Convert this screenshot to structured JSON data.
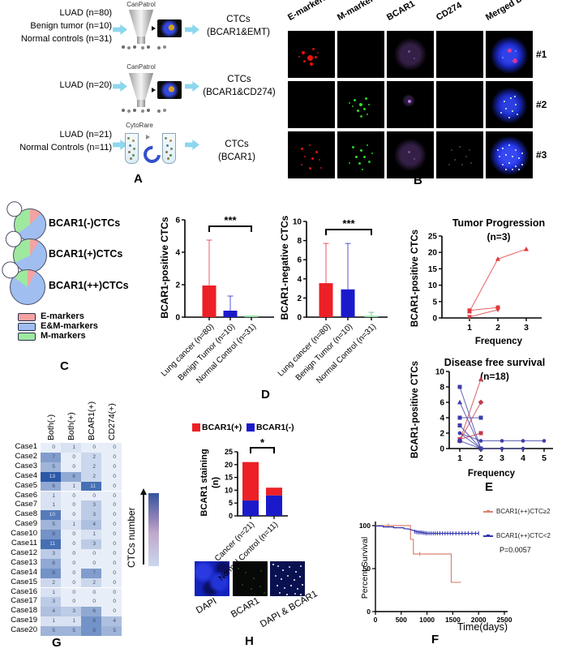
{
  "figure": {
    "panel_labels": {
      "a": "A",
      "b": "B",
      "c": "C",
      "d": "D",
      "e": "E",
      "f": "F",
      "g": "G",
      "h": "H"
    }
  },
  "panel_a": {
    "rows": [
      {
        "inputs": [
          "LUAD (n=80)",
          "Benign tumor (n=10)",
          "Normal controls (n=31)"
        ],
        "device": "CanPatrol",
        "output": [
          "CTCs",
          "(BCAR1&EMT)"
        ]
      },
      {
        "inputs": [
          "LUAD (n=20)"
        ],
        "device": "CanPatrol",
        "output": [
          "CTCs",
          "(BCAR1&CD274)"
        ]
      },
      {
        "inputs": [
          "LUAD (n=21)",
          "Normal Controls (n=11)"
        ],
        "device": "CytoRare",
        "output": [
          "CTCs",
          "(BCAR1)"
        ]
      }
    ]
  },
  "panel_b": {
    "columns": [
      "E-markers",
      "M-markers",
      "BCAR1",
      "CD274",
      "Merged DAPI"
    ],
    "rows": [
      "#1",
      "#2",
      "#3"
    ],
    "cells": [
      [
        "red-dots",
        "empty",
        "purple-glow",
        "empty",
        "dapi-red"
      ],
      [
        "empty",
        "green-dots",
        "purple-dot",
        "empty",
        "dapi-green"
      ],
      [
        "red-sparse",
        "green-dots2",
        "purple-glow",
        "faint-dots",
        "dapi-many"
      ]
    ]
  },
  "panel_c": {
    "legend": [
      {
        "label": "E-markers",
        "color": "#f4a2a2"
      },
      {
        "label": "E&M-markers",
        "color": "#a0bff0"
      },
      {
        "label": "M-markers",
        "color": "#9fe89f"
      }
    ],
    "donuts": [
      {
        "label": "BCAR1(-)CTCs",
        "values": [
          12,
          53,
          35
        ]
      },
      {
        "label": "BCAR1(+)CTCs",
        "values": [
          9,
          59,
          32
        ]
      },
      {
        "label": "BCAR1(++)CTCs",
        "values": [
          8,
          77,
          15
        ]
      }
    ]
  },
  "chart_data": [
    {
      "id": "d_pos",
      "type": "bar",
      "ylabel": "BCAR1-positive CTCs",
      "ylim": [
        0,
        6
      ],
      "yticks": [
        0,
        2,
        4,
        6
      ],
      "categories": [
        "Lung cancer (n=80)",
        "Benign Tumor (n=10)",
        "Normal Control (n=31)"
      ],
      "values": [
        1.95,
        0.4,
        0.02
      ],
      "errors": [
        2.8,
        0.9,
        0.05
      ],
      "colors": [
        "#ec2026",
        "#1b1acb",
        "#90dfa8"
      ],
      "err_colors": [
        "#ec2026",
        "#1b1acb",
        "#49b96a"
      ],
      "sig": {
        "text": "***",
        "pairs": [
          0,
          2
        ]
      }
    },
    {
      "id": "d_neg",
      "type": "bar",
      "ylabel": "BCAR1-negative CTCs",
      "ylim": [
        0,
        10
      ],
      "yticks": [
        0,
        2,
        4,
        6,
        8,
        10
      ],
      "categories": [
        "Lung cancer (n=80)",
        "Benign Tumor (n=10)",
        "Normal Control (n=31)"
      ],
      "values": [
        3.55,
        2.9,
        0.15
      ],
      "errors": [
        4.15,
        4.8,
        0.35
      ],
      "colors": [
        "#ec2026",
        "#1b1acb",
        "#90dfa8"
      ],
      "err_colors": [
        "#ec2026",
        "#1b1acb",
        "#49b96a"
      ],
      "sig": {
        "text": "***",
        "pairs": [
          0,
          2
        ]
      }
    },
    {
      "id": "e_tp",
      "type": "line",
      "title": "Tumor Progression",
      "subtitle": "(n=3)",
      "ylabel": "BCAR1-positive CTCs",
      "xlabel": "Frequency",
      "xlim": [
        1,
        3
      ],
      "ylim": [
        0,
        25
      ],
      "yticks": [
        0,
        5,
        10,
        15,
        20,
        25
      ],
      "xticks": [
        1,
        2,
        3
      ],
      "series": [
        {
          "color": "#e0393c",
          "marker": "triangle",
          "points": [
            [
              1,
              2
            ],
            [
              2,
              18
            ],
            [
              3,
              21
            ]
          ]
        },
        {
          "color": "#e0393c",
          "marker": "square",
          "points": [
            [
              1,
              2.3
            ],
            [
              2,
              3.2
            ]
          ]
        },
        {
          "color": "#e0393c",
          "marker": "tri-down",
          "points": [
            [
              1,
              0.3
            ],
            [
              2,
              2.5
            ]
          ]
        }
      ]
    },
    {
      "id": "e_dfs",
      "type": "line",
      "title": "Disease free survival",
      "subtitle": "(n=18)",
      "ylabel": "BCAR1-positive CTCs",
      "xlabel": "Frequency",
      "xlim": [
        1,
        5
      ],
      "ylim": [
        0,
        10
      ],
      "yticks": [
        0,
        2,
        4,
        6,
        8,
        10
      ],
      "xticks": [
        1,
        2,
        3,
        4,
        5
      ],
      "series": [
        {
          "color": "#3d3da8",
          "marker": "square",
          "points": [
            [
              1,
              8
            ],
            [
              2,
              0
            ]
          ]
        },
        {
          "color": "#3d3da8",
          "marker": "triangle",
          "points": [
            [
              1,
              6
            ],
            [
              2,
              0
            ]
          ]
        },
        {
          "color": "#3d3da8",
          "marker": "square",
          "points": [
            [
              1,
              4
            ],
            [
              2,
              4
            ]
          ]
        },
        {
          "color": "#3d3da8",
          "marker": "square",
          "points": [
            [
              1,
              3
            ],
            [
              2,
              0
            ]
          ]
        },
        {
          "color": "#3d3da8",
          "marker": "circle",
          "points": [
            [
              1,
              2
            ],
            [
              2,
              1
            ],
            [
              3,
              1
            ],
            [
              4,
              1
            ],
            [
              5,
              1
            ]
          ]
        },
        {
          "color": "#3d3da8",
          "marker": "circle",
          "points": [
            [
              1,
              2
            ],
            [
              2,
              0
            ],
            [
              3,
              0
            ],
            [
              4,
              0
            ]
          ]
        },
        {
          "color": "#c23a4a",
          "marker": "triangle",
          "points": [
            [
              1,
              1
            ],
            [
              2,
              9
            ]
          ]
        },
        {
          "color": "#c23a4a",
          "marker": "diamond",
          "points": [
            [
              1,
              1
            ],
            [
              2,
              6
            ]
          ]
        },
        {
          "color": "#c23a4a",
          "marker": "square",
          "points": [
            [
              1,
              1.2
            ],
            [
              2,
              2
            ]
          ]
        },
        {
          "color": "#3d3da8",
          "marker": "square",
          "points": [
            [
              1,
              1
            ],
            [
              2,
              0
            ]
          ]
        }
      ]
    },
    {
      "id": "km",
      "type": "line",
      "subtype": "step",
      "ylabel": "Percent Survival",
      "xlabel": "Time(days)",
      "xlim": [
        0,
        2500
      ],
      "ylim": [
        0,
        100
      ],
      "xticks": [
        0,
        500,
        1000,
        1500,
        2000,
        2500
      ],
      "yticks": [
        0,
        50,
        100
      ],
      "p_value": "P=0.0057",
      "series": [
        {
          "name": "BCAR1(++)CTC≥2",
          "color": "#d98272",
          "points": [
            [
              0,
              100
            ],
            [
              680,
              100
            ],
            [
              680,
              84
            ],
            [
              735,
              84
            ],
            [
              735,
              67
            ],
            [
              1470,
              67
            ],
            [
              1470,
              34
            ],
            [
              1660,
              34
            ]
          ],
          "censors": [
            [
              250,
              100
            ],
            [
              860,
              67
            ]
          ]
        },
        {
          "name": "BCAR1(++)CTC<2",
          "color": "#3434ad",
          "points": [
            [
              0,
              99.5
            ],
            [
              150,
              99.5
            ],
            [
              150,
              98.5
            ],
            [
              350,
              98.5
            ],
            [
              350,
              97.5
            ],
            [
              550,
              97.5
            ],
            [
              550,
              96.5
            ],
            [
              650,
              96
            ],
            [
              700,
              95
            ],
            [
              750,
              94
            ],
            [
              800,
              93
            ],
            [
              850,
              92.5
            ],
            [
              900,
              92
            ],
            [
              1000,
              91
            ],
            [
              2000,
              91
            ]
          ],
          "censors": [
            [
              760,
              93
            ],
            [
              790,
              92.5
            ],
            [
              820,
              92.2
            ],
            [
              850,
              92
            ],
            [
              880,
              92
            ],
            [
              910,
              91.8
            ],
            [
              940,
              91.5
            ],
            [
              970,
              91.3
            ],
            [
              1000,
              91
            ],
            [
              1040,
              91
            ],
            [
              1080,
              91
            ],
            [
              1120,
              91
            ],
            [
              1160,
              91
            ],
            [
              1200,
              91
            ],
            [
              1250,
              91
            ],
            [
              1300,
              91
            ],
            [
              1350,
              91
            ],
            [
              1400,
              91
            ],
            [
              1450,
              91
            ],
            [
              1500,
              91
            ],
            [
              1560,
              91
            ],
            [
              1620,
              91
            ],
            [
              1680,
              91
            ],
            [
              1740,
              91
            ],
            [
              1800,
              91
            ],
            [
              1870,
              91
            ],
            [
              1940,
              91
            ],
            [
              2000,
              91
            ]
          ]
        }
      ]
    },
    {
      "id": "h_stain",
      "type": "bar",
      "subtype": "stacked",
      "ylabel_lines": [
        "BCAR1 staining",
        "(n)"
      ],
      "ylim": [
        0,
        25
      ],
      "yticks": [
        0,
        5,
        10,
        15,
        20,
        25
      ],
      "categories": [
        "Cancer (n=21)",
        "Normal Control (n=11)"
      ],
      "series": [
        {
          "name": "BCAR1(-)",
          "color": "#1b1acb",
          "values": [
            6,
            8
          ]
        },
        {
          "name": "BCAR1(+)",
          "color": "#ec2026",
          "values": [
            15,
            3
          ]
        }
      ],
      "sig": {
        "text": "*",
        "pairs": [
          0,
          1
        ]
      }
    },
    {
      "id": "g_heat",
      "type": "heatmap",
      "colorbar_label": "CTCs number",
      "columns": [
        "Both(-)",
        "Both(+)",
        "BCAR1(+)",
        "CD274(+)"
      ],
      "rows": [
        "Case1",
        "Case2",
        "Case3",
        "Case4",
        "Case5",
        "Case6",
        "Case7",
        "Case8",
        "Case9",
        "Case10",
        "Case11",
        "Case12",
        "Case13",
        "Case14",
        "Case15",
        "Case16",
        "Case17",
        "Case18",
        "Case19",
        "Case20"
      ],
      "values": [
        [
          0,
          1,
          0,
          0
        ],
        [
          7,
          0,
          2,
          0
        ],
        [
          5,
          0,
          2,
          0
        ],
        [
          13,
          6,
          2,
          0
        ],
        [
          6,
          1,
          11,
          0
        ],
        [
          1,
          0,
          0,
          0
        ],
        [
          1,
          0,
          3,
          0
        ],
        [
          10,
          0,
          3,
          0
        ],
        [
          5,
          1,
          4,
          0
        ],
        [
          8,
          0,
          1,
          0
        ],
        [
          11,
          0,
          3,
          0
        ],
        [
          3,
          0,
          0,
          0
        ],
        [
          6,
          0,
          0,
          0
        ],
        [
          8,
          0,
          7,
          0
        ],
        [
          2,
          0,
          2,
          0
        ],
        [
          1,
          0,
          0,
          0
        ],
        [
          3,
          0,
          0,
          0
        ],
        [
          4,
          3,
          6,
          0
        ],
        [
          1,
          1,
          8,
          4
        ],
        [
          5,
          5,
          8,
          5
        ]
      ]
    }
  ],
  "panel_h_images": {
    "labels": [
      "DAPI",
      "BCAR1",
      "DAPI & BCAR1"
    ]
  }
}
